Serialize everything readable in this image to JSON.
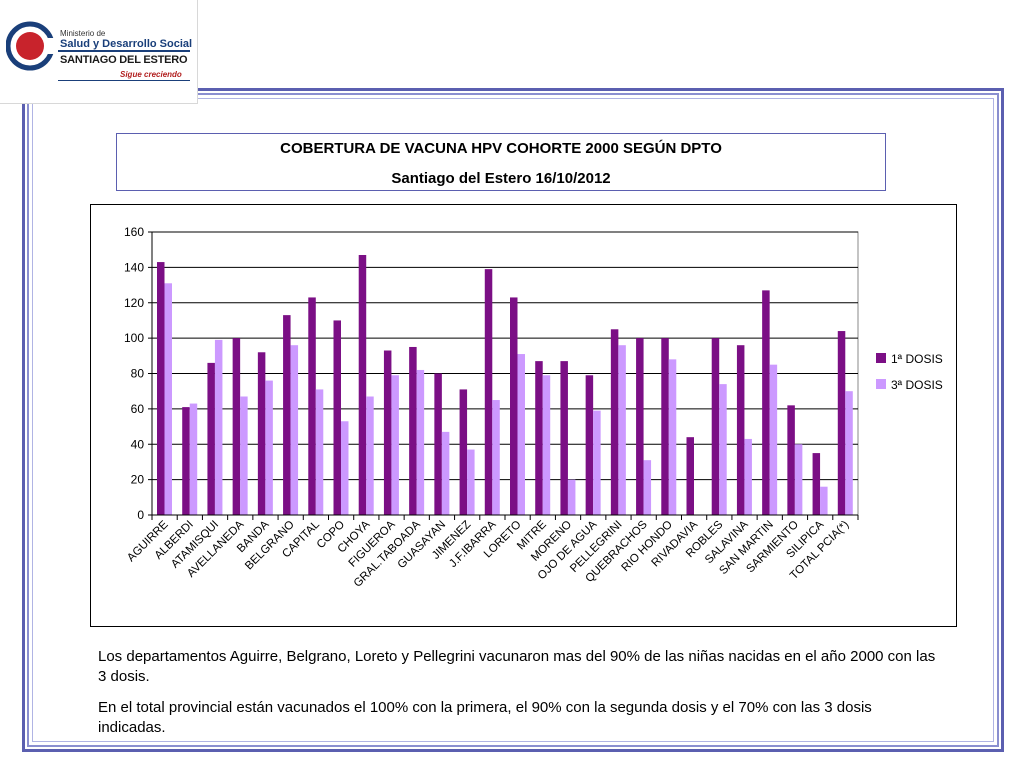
{
  "logo": {
    "line1": "Ministerio de",
    "line2": "Salud y Desarrollo Social",
    "line3": "SANTIAGO DEL ESTERO",
    "line4": "Sigue creciendo"
  },
  "title": {
    "line1": "COBERTURA DE VACUNA HPV COHORTE 2000 SEGÚN DPTO",
    "line2": "Santiago del Estero 16/10/2012"
  },
  "colors": {
    "series1": "#7b0f85",
    "series2": "#cc99ff"
  },
  "chart_data": {
    "type": "bar",
    "categories": [
      "AGUIRRE",
      "ALBERDI",
      "ATAMISQUI",
      "AVELLANEDA",
      "BANDA",
      "BELGRANO",
      "CAPITAL",
      "COPO",
      "CHOYA",
      "FIGUEROA",
      "GRAL.TABOADA",
      "GUASAYAN",
      "JIMENEZ",
      "J.F.IBARRA",
      "LORETO",
      "MITRE",
      "MORENO",
      "OJO DE AGUA",
      "PELLEGRINI",
      "QUEBRACHOS",
      "RIO HONDO",
      "RIVADAVIA",
      "ROBLES",
      "SALAVINA",
      "SAN MARTIN",
      "SARMIENTO",
      "SILIPICA",
      "TOTAL PCIA(*)"
    ],
    "series": [
      {
        "name": "1ª DOSIS",
        "values": [
          143,
          61,
          86,
          100,
          92,
          113,
          123,
          110,
          147,
          93,
          95,
          80,
          71,
          139,
          123,
          87,
          87,
          79,
          105,
          100,
          100,
          44,
          100,
          96,
          127,
          62,
          35,
          104
        ]
      },
      {
        "name": "3ª DOSIS",
        "values": [
          131,
          63,
          99,
          67,
          76,
          96,
          71,
          53,
          67,
          79,
          82,
          47,
          37,
          65,
          91,
          79,
          20,
          59,
          96,
          31,
          88,
          0,
          74,
          43,
          85,
          40,
          16,
          70
        ]
      }
    ],
    "yticks": [
      "0",
      "20",
      "40",
      "60",
      "80",
      "100",
      "120",
      "140",
      "160"
    ],
    "ylim": [
      0,
      160
    ],
    "grid": true,
    "legend_position": "right"
  },
  "text": {
    "para1": "Los departamentos Aguirre, Belgrano, Loreto y Pellegrini vacunaron mas del 90% de las niñas nacidas en el año 2000 con las 3 dosis.",
    "para2": "En el total provincial están vacunados el 100% con la primera, el 90% con la segunda dosis y el 70% con las 3 dosis indicadas."
  }
}
